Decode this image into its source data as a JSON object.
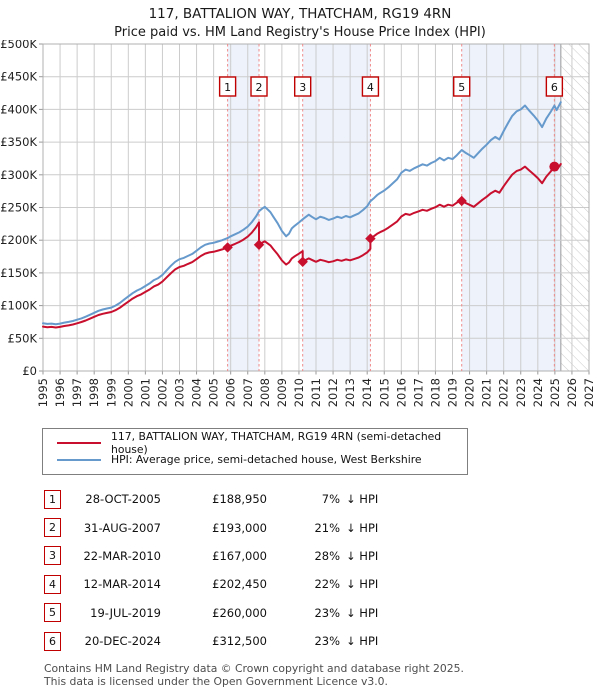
{
  "page": {
    "title": "117, BATTALION WAY, THATCHAM, RG19 4RN",
    "subtitle": "Price paid vs. HM Land Registry's House Price Index (HPI)"
  },
  "legend": {
    "property": "117, BATTALION WAY, THATCHAM, RG19 4RN (semi-detached house)",
    "hpi": "HPI: Average price, semi-detached house, West Berkshire"
  },
  "colors": {
    "property": "#c8102e",
    "hpi": "#6699cc",
    "marker_line": "#ef8a8a",
    "band": "#edf2fb",
    "grid": "#cccccc",
    "border": "#b0b0b0",
    "tick": "#999999",
    "hatch_line": "#c9c9c9",
    "box_border": "#c00000",
    "label": "#222222"
  },
  "transactions": [
    {
      "n": "1",
      "date": "28-OCT-2005",
      "price": "£188,950",
      "pct": "7%",
      "hpi_rel": "↓ HPI",
      "t": 2005.82,
      "value_k": 188.95,
      "shape": "diamond"
    },
    {
      "n": "2",
      "date": "31-AUG-2007",
      "price": "£193,000",
      "pct": "21%",
      "hpi_rel": "↓ HPI",
      "t": 2007.66,
      "value_k": 193.0,
      "shape": "diamond"
    },
    {
      "n": "3",
      "date": "22-MAR-2010",
      "price": "£167,000",
      "pct": "28%",
      "hpi_rel": "↓ HPI",
      "t": 2010.22,
      "value_k": 167.0,
      "shape": "diamond"
    },
    {
      "n": "4",
      "date": "12-MAR-2014",
      "price": "£202,450",
      "pct": "22%",
      "hpi_rel": "↓ HPI",
      "t": 2014.19,
      "value_k": 202.45,
      "shape": "diamond"
    },
    {
      "n": "5",
      "date": "19-JUL-2019",
      "price": "£260,000",
      "pct": "23%",
      "hpi_rel": "↓ HPI",
      "t": 2019.54,
      "value_k": 260.0,
      "shape": "diamond"
    },
    {
      "n": "6",
      "date": "20-DEC-2024",
      "price": "£312,500",
      "pct": "23%",
      "hpi_rel": "↓ HPI",
      "t": 2024.97,
      "value_k": 312.5,
      "shape": "circle"
    }
  ],
  "footer": {
    "line1": "Contains HM Land Registry data © Crown copyright and database right 2025.",
    "line2": "This data is licensed under the Open Government Licence v3.0."
  },
  "chart_data": {
    "type": "line",
    "title": "117, BATTALION WAY, THATCHAM, RG19 4RN — Price paid vs. HPI",
    "unit": "GBP thousands",
    "xlim": [
      1995,
      2027
    ],
    "ylim_k": [
      0,
      500
    ],
    "y_tick_step_k": 50,
    "y_tick_labels": [
      "£0",
      "£50K",
      "£100K",
      "£150K",
      "£200K",
      "£250K",
      "£300K",
      "£350K",
      "£400K",
      "£450K",
      "£500K"
    ],
    "x_tick_labels": [
      "1995",
      "1996",
      "1997",
      "1998",
      "1999",
      "2000",
      "2001",
      "2002",
      "2003",
      "2004",
      "2005",
      "2006",
      "2007",
      "2008",
      "2009",
      "2010",
      "2011",
      "2012",
      "2013",
      "2014",
      "2015",
      "2016",
      "2017",
      "2018",
      "2019",
      "2020",
      "2021",
      "2022",
      "2023",
      "2024",
      "2025",
      "2026",
      "2027"
    ],
    "grid": true,
    "legend_position": "below",
    "bands": [
      [
        2005.82,
        2007.66
      ],
      [
        2010.22,
        2014.19
      ],
      [
        2019.54,
        2025.35
      ]
    ],
    "future_start": 2025.35,
    "series": [
      {
        "name": "HPI: Average price, semi-detached house, West Berkshire",
        "color_key": "hpi",
        "points": [
          [
            1995.0,
            73
          ],
          [
            1995.25,
            72
          ],
          [
            1995.5,
            72.5
          ],
          [
            1995.75,
            71.5
          ],
          [
            1996.0,
            72.5
          ],
          [
            1996.25,
            74
          ],
          [
            1996.5,
            75
          ],
          [
            1996.75,
            76.5
          ],
          [
            1997.0,
            78.5
          ],
          [
            1997.25,
            80.5
          ],
          [
            1997.5,
            83
          ],
          [
            1997.75,
            86
          ],
          [
            1998.0,
            89
          ],
          [
            1998.25,
            92
          ],
          [
            1998.5,
            94
          ],
          [
            1998.75,
            95.5
          ],
          [
            1999.0,
            97
          ],
          [
            1999.25,
            100
          ],
          [
            1999.5,
            104
          ],
          [
            1999.75,
            109
          ],
          [
            2000.0,
            114
          ],
          [
            2000.25,
            119
          ],
          [
            2000.5,
            123
          ],
          [
            2000.75,
            126
          ],
          [
            2001.0,
            130
          ],
          [
            2001.25,
            134
          ],
          [
            2001.5,
            139
          ],
          [
            2001.75,
            142
          ],
          [
            2002.0,
            147
          ],
          [
            2002.25,
            154
          ],
          [
            2002.5,
            161
          ],
          [
            2002.75,
            167
          ],
          [
            2003.0,
            171
          ],
          [
            2003.25,
            173
          ],
          [
            2003.5,
            176
          ],
          [
            2003.75,
            179
          ],
          [
            2004.0,
            184
          ],
          [
            2004.25,
            189
          ],
          [
            2004.5,
            193
          ],
          [
            2004.75,
            195
          ],
          [
            2005.0,
            196
          ],
          [
            2005.25,
            198
          ],
          [
            2005.5,
            200
          ],
          [
            2005.82,
            203.2
          ],
          [
            2006.0,
            206
          ],
          [
            2006.25,
            209
          ],
          [
            2006.5,
            212
          ],
          [
            2006.75,
            216
          ],
          [
            2007.0,
            221
          ],
          [
            2007.25,
            228
          ],
          [
            2007.5,
            237
          ],
          [
            2007.66,
            244.3
          ],
          [
            2007.83,
            248
          ],
          [
            2008.0,
            251
          ],
          [
            2008.17,
            247
          ],
          [
            2008.33,
            243
          ],
          [
            2008.5,
            236
          ],
          [
            2008.75,
            226
          ],
          [
            2009.0,
            214
          ],
          [
            2009.25,
            206
          ],
          [
            2009.42,
            210
          ],
          [
            2009.58,
            218
          ],
          [
            2009.75,
            222
          ],
          [
            2010.0,
            227
          ],
          [
            2010.22,
            231.9
          ],
          [
            2010.42,
            236
          ],
          [
            2010.58,
            239
          ],
          [
            2010.75,
            236
          ],
          [
            2011.0,
            232
          ],
          [
            2011.25,
            236
          ],
          [
            2011.5,
            234
          ],
          [
            2011.75,
            231
          ],
          [
            2012.0,
            233
          ],
          [
            2012.25,
            236
          ],
          [
            2012.5,
            234
          ],
          [
            2012.75,
            237
          ],
          [
            2013.0,
            235
          ],
          [
            2013.25,
            238
          ],
          [
            2013.5,
            241
          ],
          [
            2013.75,
            246
          ],
          [
            2014.0,
            252
          ],
          [
            2014.19,
            259.6
          ],
          [
            2014.42,
            265
          ],
          [
            2014.58,
            269
          ],
          [
            2014.75,
            272
          ],
          [
            2015.0,
            276
          ],
          [
            2015.25,
            281
          ],
          [
            2015.5,
            287
          ],
          [
            2015.75,
            293
          ],
          [
            2016.0,
            303
          ],
          [
            2016.25,
            308
          ],
          [
            2016.5,
            306
          ],
          [
            2016.75,
            310
          ],
          [
            2017.0,
            313
          ],
          [
            2017.25,
            316
          ],
          [
            2017.5,
            314
          ],
          [
            2017.75,
            318
          ],
          [
            2018.0,
            321
          ],
          [
            2018.25,
            326
          ],
          [
            2018.5,
            322
          ],
          [
            2018.75,
            326
          ],
          [
            2019.0,
            324
          ],
          [
            2019.25,
            330
          ],
          [
            2019.54,
            337.7
          ],
          [
            2019.75,
            334
          ],
          [
            2020.0,
            330
          ],
          [
            2020.25,
            326
          ],
          [
            2020.5,
            333
          ],
          [
            2020.75,
            340
          ],
          [
            2021.0,
            346
          ],
          [
            2021.25,
            353
          ],
          [
            2021.5,
            358
          ],
          [
            2021.75,
            354
          ],
          [
            2022.0,
            367
          ],
          [
            2022.25,
            379
          ],
          [
            2022.5,
            390
          ],
          [
            2022.75,
            397
          ],
          [
            2023.0,
            400
          ],
          [
            2023.25,
            406
          ],
          [
            2023.5,
            398
          ],
          [
            2023.75,
            391
          ],
          [
            2024.0,
            383
          ],
          [
            2024.25,
            373
          ],
          [
            2024.5,
            386
          ],
          [
            2024.75,
            396
          ],
          [
            2024.97,
            405.8
          ],
          [
            2025.1,
            399
          ],
          [
            2025.35,
            411
          ]
        ]
      },
      {
        "name": "117, BATTALION WAY, THATCHAM, RG19 4RN (semi-detached house)",
        "color_key": "property",
        "points": [
          [
            1995.0,
            67.9
          ],
          [
            1995.25,
            67.0
          ],
          [
            1995.5,
            67.4
          ],
          [
            1995.75,
            66.5
          ],
          [
            1996.0,
            67.4
          ],
          [
            1996.25,
            68.8
          ],
          [
            1996.5,
            69.8
          ],
          [
            1996.75,
            71.1
          ],
          [
            1997.0,
            73.0
          ],
          [
            1997.25,
            74.9
          ],
          [
            1997.5,
            77.2
          ],
          [
            1997.75,
            80.0
          ],
          [
            1998.0,
            82.8
          ],
          [
            1998.25,
            85.6
          ],
          [
            1998.5,
            87.4
          ],
          [
            1998.75,
            88.8
          ],
          [
            1999.0,
            90.2
          ],
          [
            1999.25,
            93.0
          ],
          [
            1999.5,
            96.7
          ],
          [
            1999.75,
            101.4
          ],
          [
            2000.0,
            106.0
          ],
          [
            2000.25,
            110.7
          ],
          [
            2000.5,
            114.4
          ],
          [
            2000.75,
            117.2
          ],
          [
            2001.0,
            120.9
          ],
          [
            2001.25,
            124.6
          ],
          [
            2001.5,
            129.3
          ],
          [
            2001.75,
            132.1
          ],
          [
            2002.0,
            136.7
          ],
          [
            2002.25,
            143.2
          ],
          [
            2002.5,
            149.7
          ],
          [
            2002.75,
            155.3
          ],
          [
            2003.0,
            159.0
          ],
          [
            2003.25,
            160.9
          ],
          [
            2003.5,
            163.7
          ],
          [
            2003.75,
            166.5
          ],
          [
            2004.0,
            171.1
          ],
          [
            2004.25,
            175.8
          ],
          [
            2004.5,
            179.5
          ],
          [
            2004.75,
            181.4
          ],
          [
            2005.0,
            182.3
          ],
          [
            2005.25,
            184.1
          ],
          [
            2005.5,
            186.0
          ],
          [
            2005.82,
            188.95
          ],
          [
            2006.0,
            191.6
          ],
          [
            2006.25,
            194.4
          ],
          [
            2006.5,
            197.2
          ],
          [
            2006.75,
            200.9
          ],
          [
            2007.0,
            205.5
          ],
          [
            2007.25,
            212.0
          ],
          [
            2007.5,
            220.4
          ],
          [
            2007.66,
            227.2
          ],
          [
            2007.66,
            193.0
          ],
          [
            2007.83,
            196.0
          ],
          [
            2008.0,
            198.3
          ],
          [
            2008.17,
            195.1
          ],
          [
            2008.33,
            192.0
          ],
          [
            2008.5,
            186.4
          ],
          [
            2008.75,
            178.5
          ],
          [
            2009.0,
            169.1
          ],
          [
            2009.25,
            162.7
          ],
          [
            2009.42,
            165.9
          ],
          [
            2009.58,
            172.2
          ],
          [
            2009.75,
            175.4
          ],
          [
            2010.0,
            179.3
          ],
          [
            2010.22,
            183.3
          ],
          [
            2010.22,
            167.0
          ],
          [
            2010.42,
            170.0
          ],
          [
            2010.58,
            172.1
          ],
          [
            2010.75,
            170.0
          ],
          [
            2011.0,
            167.0
          ],
          [
            2011.25,
            170.0
          ],
          [
            2011.5,
            168.5
          ],
          [
            2011.75,
            166.3
          ],
          [
            2012.0,
            167.8
          ],
          [
            2012.25,
            170.0
          ],
          [
            2012.5,
            168.5
          ],
          [
            2012.75,
            170.6
          ],
          [
            2013.0,
            169.2
          ],
          [
            2013.25,
            171.4
          ],
          [
            2013.5,
            173.5
          ],
          [
            2013.75,
            177.1
          ],
          [
            2014.0,
            181.4
          ],
          [
            2014.19,
            186.8
          ],
          [
            2014.19,
            202.45
          ],
          [
            2014.42,
            206.7
          ],
          [
            2014.58,
            209.8
          ],
          [
            2014.75,
            212.2
          ],
          [
            2015.0,
            215.3
          ],
          [
            2015.25,
            219.2
          ],
          [
            2015.5,
            223.9
          ],
          [
            2015.75,
            228.5
          ],
          [
            2016.0,
            236.3
          ],
          [
            2016.25,
            240.2
          ],
          [
            2016.5,
            238.7
          ],
          [
            2016.75,
            241.8
          ],
          [
            2017.0,
            244.1
          ],
          [
            2017.25,
            246.5
          ],
          [
            2017.5,
            244.9
          ],
          [
            2017.75,
            248.0
          ],
          [
            2018.0,
            250.4
          ],
          [
            2018.25,
            254.3
          ],
          [
            2018.5,
            251.2
          ],
          [
            2018.75,
            254.3
          ],
          [
            2019.0,
            252.7
          ],
          [
            2019.25,
            257.4
          ],
          [
            2019.54,
            263.4
          ],
          [
            2019.54,
            260.0
          ],
          [
            2019.75,
            257.2
          ],
          [
            2020.0,
            254.1
          ],
          [
            2020.25,
            251.0
          ],
          [
            2020.5,
            256.4
          ],
          [
            2020.75,
            261.8
          ],
          [
            2021.0,
            266.4
          ],
          [
            2021.25,
            271.8
          ],
          [
            2021.5,
            275.7
          ],
          [
            2021.75,
            272.6
          ],
          [
            2022.0,
            282.6
          ],
          [
            2022.25,
            291.8
          ],
          [
            2022.5,
            300.3
          ],
          [
            2022.75,
            305.7
          ],
          [
            2023.0,
            308.0
          ],
          [
            2023.25,
            312.6
          ],
          [
            2023.5,
            306.5
          ],
          [
            2023.75,
            301.1
          ],
          [
            2024.0,
            294.9
          ],
          [
            2024.25,
            287.2
          ],
          [
            2024.5,
            297.2
          ],
          [
            2024.75,
            304.9
          ],
          [
            2024.97,
            312.5
          ],
          [
            2025.1,
            307.2
          ],
          [
            2025.35,
            316.5
          ]
        ]
      }
    ]
  }
}
